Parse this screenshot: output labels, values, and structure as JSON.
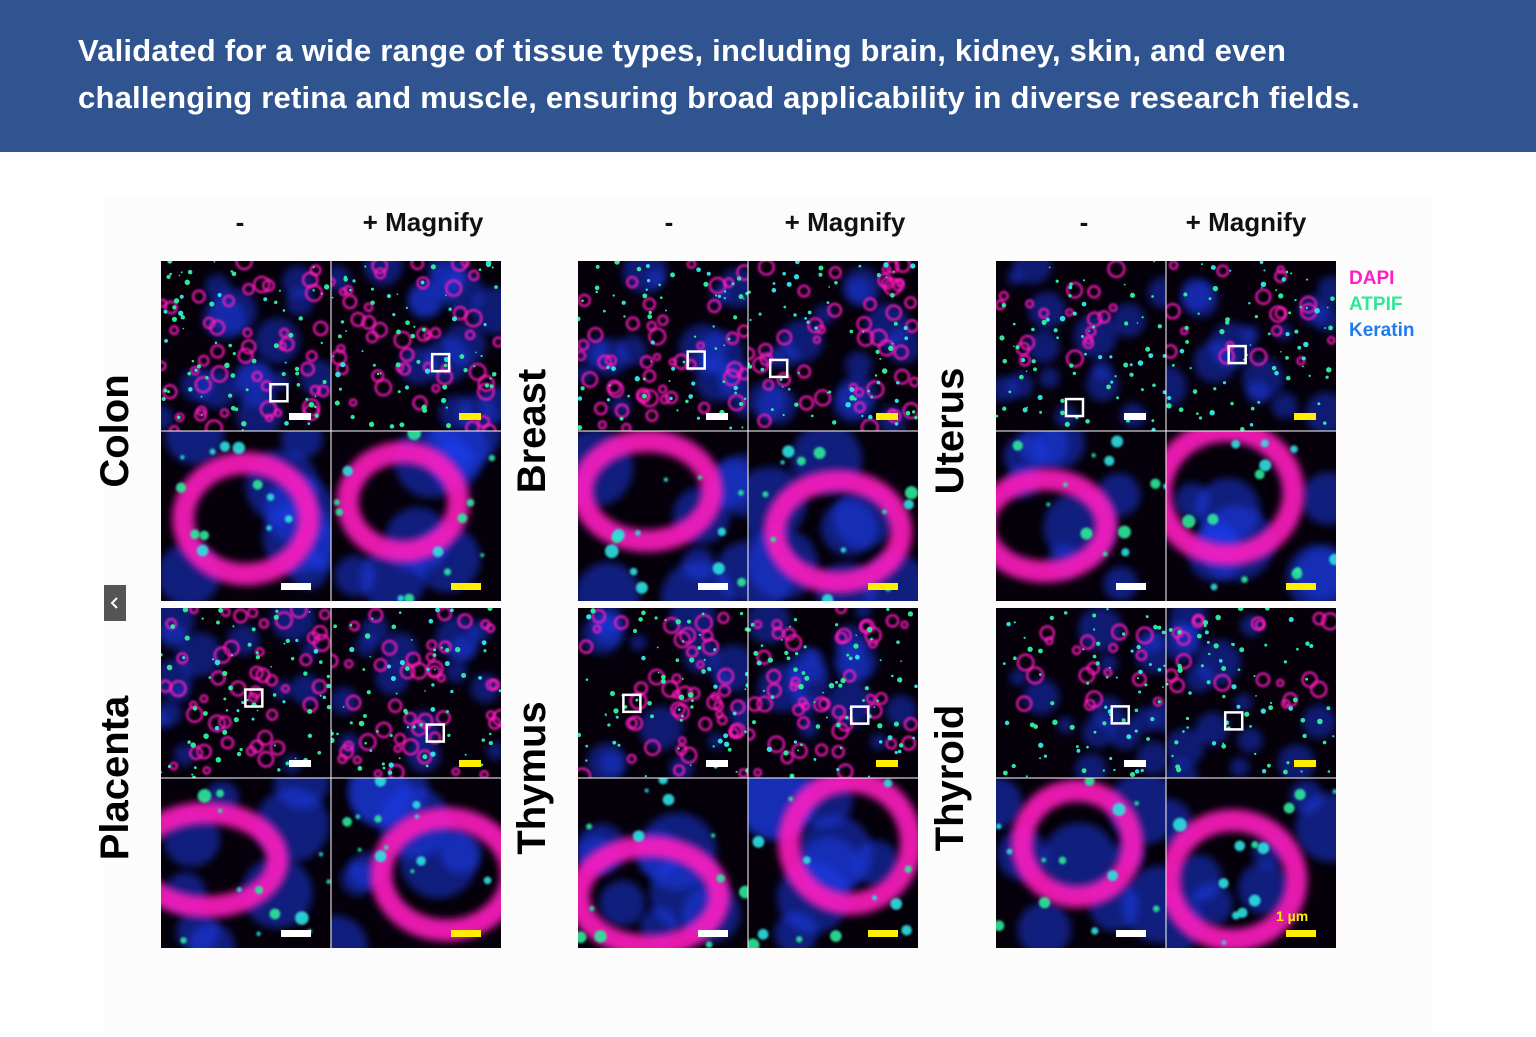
{
  "header": {
    "title_lines": [
      "Validated for a wide range of tissue types, including brain, kidney, skin, and even",
      "challenging retina and muscle, ensuring broad applicability in diverse research fields."
    ]
  },
  "figure": {
    "column_labels": [
      [
        "-",
        "+ Magnify"
      ],
      [
        "-",
        "+ Magnify"
      ],
      [
        "-",
        "+ Magnify"
      ]
    ],
    "tissues": [
      "Colon",
      "Breast",
      "Uterus",
      "Placenta",
      "Thymus",
      "Thyroid"
    ],
    "legend": [
      {
        "name": "DAPI",
        "color": "#ff1fbf"
      },
      {
        "name": "ATPIF",
        "color": "#2ee89a"
      },
      {
        "name": "Keratin",
        "color": "#1e7cf0"
      }
    ],
    "scale_label": "1 µm"
  }
}
